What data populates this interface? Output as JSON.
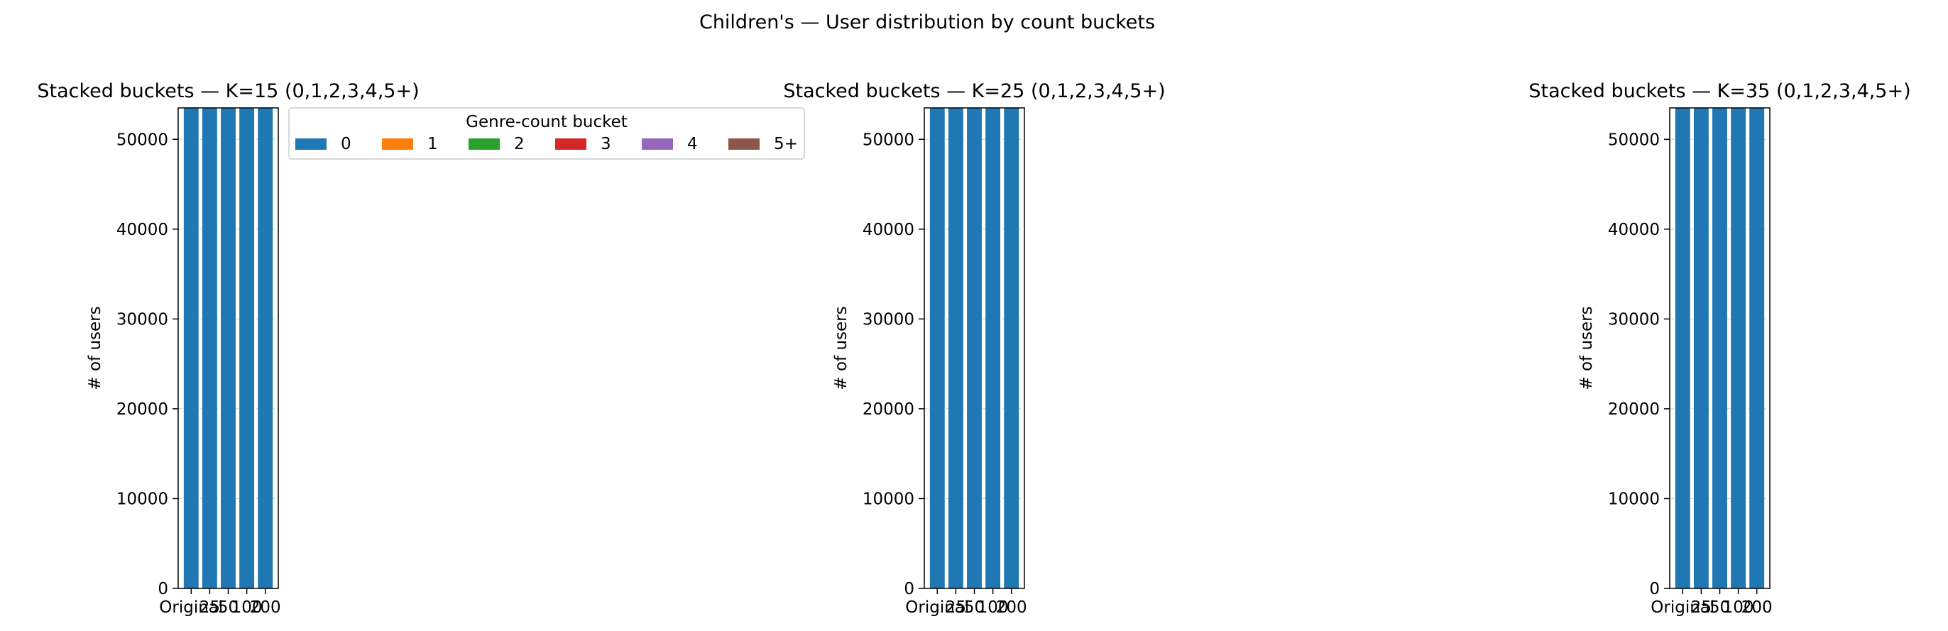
{
  "figure": {
    "suptitle": "Children's — User distribution by count buckets"
  },
  "legend": {
    "title": "Genre-count bucket",
    "entries": [
      {
        "label": "0",
        "color": "#1f77b4"
      },
      {
        "label": "1",
        "color": "#ff7f0e"
      },
      {
        "label": "2",
        "color": "#2ca02c"
      },
      {
        "label": "3",
        "color": "#d62728"
      },
      {
        "label": "4",
        "color": "#9467bd"
      },
      {
        "label": "5+",
        "color": "#8c564b"
      }
    ]
  },
  "chart_data": [
    {
      "type": "bar",
      "stacked": true,
      "title": "Stacked buckets — K=15  (0,1,2,3,4,5+)",
      "xlabel": "",
      "ylabel": "# of users",
      "categories": [
        "Original",
        "25",
        "50",
        "100",
        "200"
      ],
      "yticks": [
        "0",
        "10000",
        "20000",
        "30000",
        "40000",
        "50000"
      ],
      "ylim": [
        0,
        53500
      ],
      "grid": "y-dashed",
      "series": [
        {
          "name": "0",
          "values": [
            53500,
            53500,
            53500,
            53500,
            53500
          ]
        },
        {
          "name": "1",
          "values": [
            0,
            0,
            0,
            0,
            0
          ]
        },
        {
          "name": "2",
          "values": [
            0,
            0,
            0,
            0,
            0
          ]
        },
        {
          "name": "3",
          "values": [
            0,
            0,
            0,
            0,
            0
          ]
        },
        {
          "name": "4",
          "values": [
            0,
            0,
            0,
            0,
            0
          ]
        },
        {
          "name": "5+",
          "values": [
            0,
            0,
            0,
            0,
            0
          ]
        }
      ]
    },
    {
      "type": "bar",
      "stacked": true,
      "title": "Stacked buckets — K=25  (0,1,2,3,4,5+)",
      "xlabel": "",
      "ylabel": "# of users",
      "categories": [
        "Original",
        "25",
        "50",
        "100",
        "200"
      ],
      "yticks": [
        "0",
        "10000",
        "20000",
        "30000",
        "40000",
        "50000"
      ],
      "ylim": [
        0,
        53500
      ],
      "grid": "y-dashed",
      "series": [
        {
          "name": "0",
          "values": [
            53500,
            53500,
            53500,
            53500,
            53500
          ]
        },
        {
          "name": "1",
          "values": [
            0,
            0,
            0,
            0,
            0
          ]
        },
        {
          "name": "2",
          "values": [
            0,
            0,
            0,
            0,
            0
          ]
        },
        {
          "name": "3",
          "values": [
            0,
            0,
            0,
            0,
            0
          ]
        },
        {
          "name": "4",
          "values": [
            0,
            0,
            0,
            0,
            0
          ]
        },
        {
          "name": "5+",
          "values": [
            0,
            0,
            0,
            0,
            0
          ]
        }
      ]
    },
    {
      "type": "bar",
      "stacked": true,
      "title": "Stacked buckets — K=35  (0,1,2,3,4,5+)",
      "xlabel": "",
      "ylabel": "# of users",
      "categories": [
        "Original",
        "25",
        "50",
        "100",
        "200"
      ],
      "yticks": [
        "0",
        "10000",
        "20000",
        "30000",
        "40000",
        "50000"
      ],
      "ylim": [
        0,
        53500
      ],
      "grid": "y-dashed",
      "series": [
        {
          "name": "0",
          "values": [
            53500,
            53500,
            53500,
            53500,
            53500
          ]
        },
        {
          "name": "1",
          "values": [
            0,
            0,
            0,
            0,
            0
          ]
        },
        {
          "name": "2",
          "values": [
            0,
            0,
            0,
            0,
            0
          ]
        },
        {
          "name": "3",
          "values": [
            0,
            0,
            0,
            0,
            0
          ]
        },
        {
          "name": "4",
          "values": [
            0,
            0,
            0,
            0,
            0
          ]
        },
        {
          "name": "5+",
          "values": [
            0,
            0,
            0,
            0,
            0
          ]
        }
      ]
    }
  ]
}
